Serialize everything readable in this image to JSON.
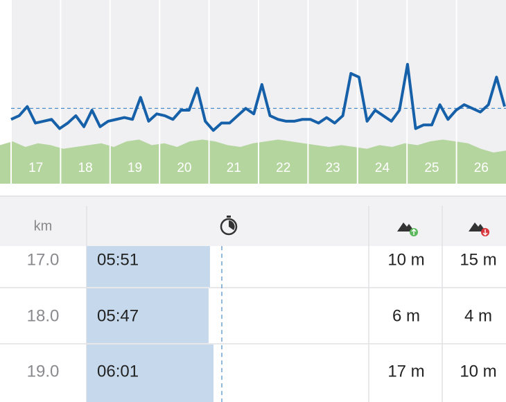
{
  "chart": {
    "type": "line",
    "km_labels": [
      "17",
      "18",
      "19",
      "20",
      "21",
      "22",
      "23",
      "24",
      "25",
      "26"
    ],
    "xlim": [
      16.8,
      27
    ],
    "ylim": [
      0,
      100
    ],
    "pace_line": {
      "color": "#1560a8",
      "values": [
        35,
        37,
        42,
        33,
        34,
        35,
        30,
        33,
        37,
        31,
        40,
        31,
        34,
        35,
        36,
        35,
        47,
        34,
        38,
        37,
        35,
        40,
        40,
        52,
        34,
        29,
        33,
        33,
        37,
        41,
        38,
        54,
        37,
        35,
        34,
        34,
        35,
        35,
        33,
        36,
        33,
        37,
        60,
        58,
        34,
        40,
        37,
        34,
        40,
        65,
        30,
        32,
        32,
        43,
        35,
        40,
        43,
        41,
        39,
        43,
        58,
        42
      ]
    },
    "average": 41,
    "elevation": {
      "color": "#b5d59f",
      "values": [
        21,
        23,
        20,
        22,
        21,
        19,
        20,
        21,
        22,
        20,
        23,
        24,
        21,
        22,
        20,
        23,
        24,
        23,
        21,
        20,
        22,
        23,
        24,
        23,
        22,
        21,
        20,
        21,
        20,
        19,
        21,
        20,
        22,
        21,
        23,
        24,
        23,
        22,
        19,
        17,
        18
      ]
    }
  },
  "table": {
    "header": {
      "km": "km"
    },
    "rows": [
      {
        "km": "17.0",
        "pace": 351,
        "pace_label": "05:51",
        "ascent": "10 m",
        "descent": "15 m"
      },
      {
        "km": "18.0",
        "pace": 347,
        "pace_label": "05:47",
        "ascent": "6 m",
        "descent": "4 m"
      },
      {
        "km": "19.0",
        "pace": 361,
        "pace_label": "06:01",
        "ascent": "17 m",
        "descent": "10 m"
      }
    ]
  }
}
